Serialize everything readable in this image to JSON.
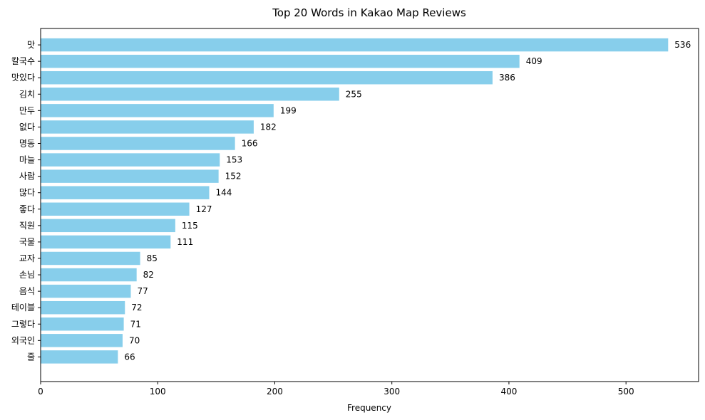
{
  "chart_data": {
    "type": "bar",
    "orientation": "horizontal",
    "title": "Top 20 Words in Kakao Map Reviews",
    "xlabel": "Frequency",
    "ylabel": "",
    "categories": [
      "맛",
      "칼국수",
      "맛있다",
      "김치",
      "만두",
      "없다",
      "명동",
      "마늘",
      "사람",
      "많다",
      "좋다",
      "직원",
      "국물",
      "교자",
      "손님",
      "음식",
      "테이블",
      "그렇다",
      "외국인",
      "줄"
    ],
    "values": [
      536,
      409,
      386,
      255,
      199,
      182,
      166,
      153,
      152,
      144,
      127,
      115,
      111,
      85,
      82,
      77,
      72,
      71,
      70,
      66
    ],
    "xlim": [
      0,
      562
    ],
    "xticks": [
      0,
      100,
      200,
      300,
      400,
      500
    ],
    "bar_color": "#87ceeb",
    "grid": false,
    "legend": "none"
  }
}
